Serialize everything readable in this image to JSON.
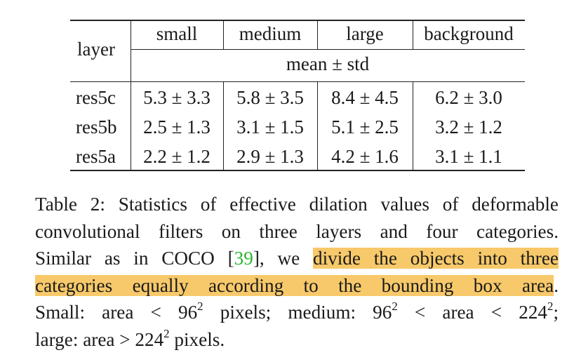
{
  "table": {
    "row_header_label": "layer",
    "columns": [
      "small",
      "medium",
      "large",
      "background"
    ],
    "subheader": "mean ± std",
    "rows": [
      {
        "layer": "res5c",
        "values": [
          "5.3 ± 3.3",
          "5.8 ± 3.5",
          "8.4 ± 4.5",
          "6.2 ± 3.0"
        ]
      },
      {
        "layer": "res5b",
        "values": [
          "2.5 ± 1.3",
          "3.1 ± 1.5",
          "5.1 ± 2.5",
          "3.2 ± 1.2"
        ]
      },
      {
        "layer": "res5a",
        "values": [
          "2.2 ± 1.2",
          "2.9 ± 1.3",
          "4.2 ± 1.6",
          "3.1 ± 1.1"
        ]
      }
    ]
  },
  "caption": {
    "line1": "Table 2: Statistics of effective dilation values of deformable",
    "line2": "convolutional filters on three layers and four categories.",
    "line3_pre": "Similar as in COCO [",
    "citation": "39",
    "line3_post": "], we ",
    "highlight_part1": "divide the objects into three",
    "highlight_part2": "categories equally according to the bounding box area",
    "line4_end": ".",
    "line5_a": "Small: area < 96",
    "line5_b": " pixels; medium: 96",
    "line5_c": " < area < 224",
    "line5_d": ";",
    "line6_a": "large: area > 224",
    "line6_b": " pixels.",
    "exponent": "2",
    "highlight_color": "#f7c96a",
    "citation_color": "#2db52d"
  }
}
